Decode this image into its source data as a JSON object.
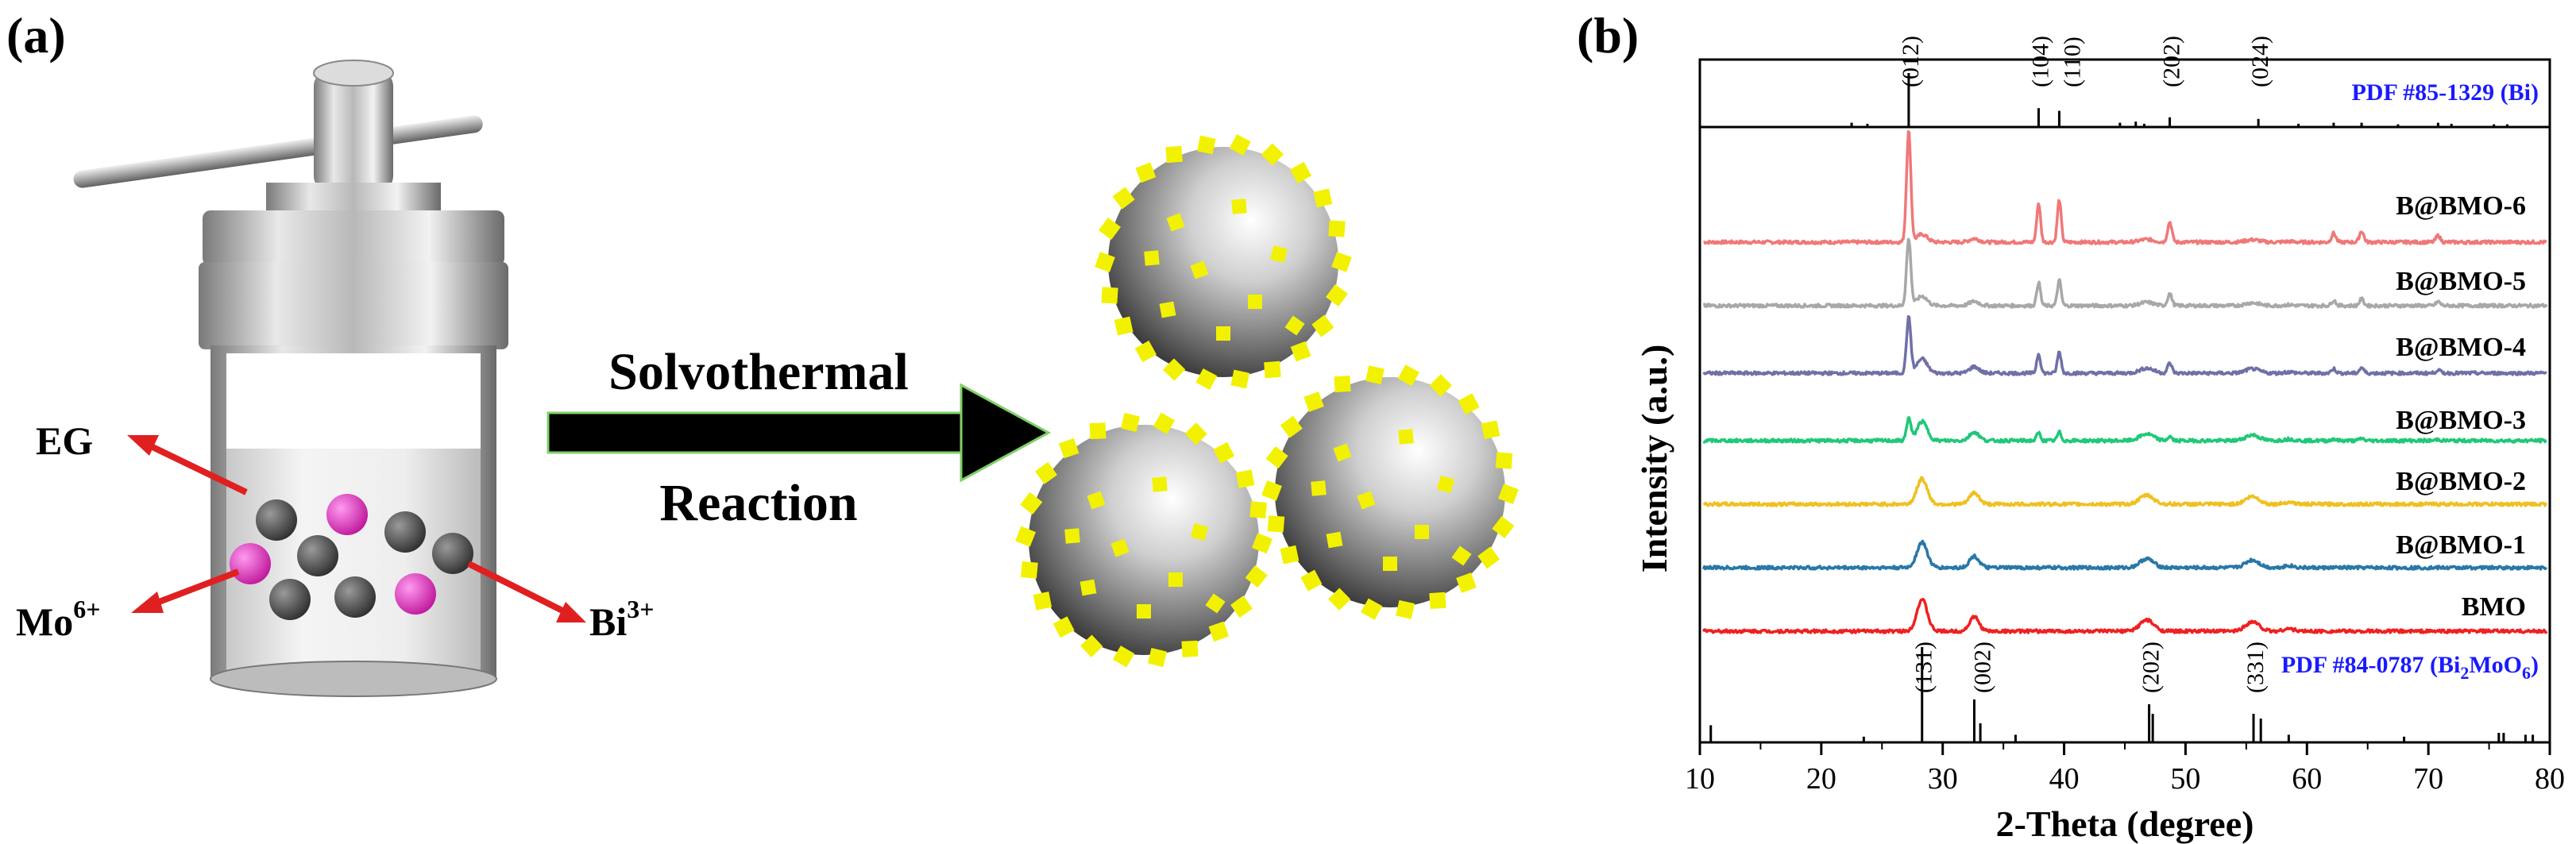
{
  "panel_a": {
    "label": "(a)",
    "arrow_text_line1": "Solvothermal",
    "arrow_text_line2": "Reaction",
    "reagents": {
      "eg": "EG",
      "mo_base": "Mo",
      "mo_sup": "6+",
      "bi_base": "Bi",
      "bi_sup": "3+"
    },
    "colors": {
      "particle_dark": "#555555",
      "particle_magenta": "#e040c0",
      "decoration_yellow": "#f2f200",
      "pointer_red": "#e02020"
    }
  },
  "panel_b": {
    "label": "(b)",
    "chart_data": {
      "type": "line",
      "xlabel": "2-Theta (degree)",
      "ylabel": "Intensity (a.u.)",
      "xlim": [
        10,
        80
      ],
      "x_ticks": [
        "10",
        "20",
        "30",
        "40",
        "50",
        "60",
        "70",
        "80"
      ],
      "grid": false,
      "series": [
        {
          "name": "B@BMO-6",
          "color": "#f07878",
          "bi_strength": 1.0,
          "bmo_strength": 0.25
        },
        {
          "name": "B@BMO-5",
          "color": "#a8a8a8",
          "bi_strength": 0.6,
          "bmo_strength": 0.3
        },
        {
          "name": "B@BMO-4",
          "color": "#7070a8",
          "bi_strength": 0.5,
          "bmo_strength": 0.45
        },
        {
          "name": "B@BMO-3",
          "color": "#20c878",
          "bi_strength": 0.2,
          "bmo_strength": 0.6
        },
        {
          "name": "B@BMO-2",
          "color": "#f0c020",
          "bi_strength": 0.0,
          "bmo_strength": 0.8
        },
        {
          "name": "B@BMO-1",
          "color": "#2878a8",
          "bi_strength": 0.0,
          "bmo_strength": 0.8
        },
        {
          "name": "BMO",
          "color": "#f02020",
          "bi_strength": 0.0,
          "bmo_strength": 1.0
        }
      ],
      "reference_top": {
        "label": "PDF #85-1329 (Bi)",
        "label_color": "#1a1aff",
        "sticks": [
          {
            "x": 22.5,
            "h": 0.08
          },
          {
            "x": 23.8,
            "h": 0.06
          },
          {
            "x": 27.2,
            "h": 1.0
          },
          {
            "x": 37.9,
            "h": 0.35
          },
          {
            "x": 39.6,
            "h": 0.3
          },
          {
            "x": 44.6,
            "h": 0.08
          },
          {
            "x": 45.9,
            "h": 0.1
          },
          {
            "x": 46.6,
            "h": 0.06
          },
          {
            "x": 48.7,
            "h": 0.18
          },
          {
            "x": 56.0,
            "h": 0.15
          },
          {
            "x": 59.3,
            "h": 0.06
          },
          {
            "x": 62.2,
            "h": 0.08
          },
          {
            "x": 64.5,
            "h": 0.08
          },
          {
            "x": 67.5,
            "h": 0.05
          },
          {
            "x": 70.8,
            "h": 0.08
          },
          {
            "x": 71.9,
            "h": 0.06
          },
          {
            "x": 75.4,
            "h": 0.05
          },
          {
            "x": 76.5,
            "h": 0.05
          }
        ],
        "hkl": [
          {
            "x": 27.2,
            "text": "(012)"
          },
          {
            "x": 37.9,
            "text": "(104)"
          },
          {
            "x": 39.6,
            "text": "(110)"
          },
          {
            "x": 48.7,
            "text": "(202)"
          },
          {
            "x": 56.0,
            "text": "(024)"
          }
        ]
      },
      "reference_bottom": {
        "label_base": "PDF #84-0787 (Bi",
        "label_sub1": "2",
        "label_mid": "MoO",
        "label_sub2": "6",
        "label_end": ")",
        "label_color": "#1a1aff",
        "sticks": [
          {
            "x": 10.9,
            "h": 0.18
          },
          {
            "x": 23.5,
            "h": 0.06
          },
          {
            "x": 28.3,
            "h": 1.0
          },
          {
            "x": 32.6,
            "h": 0.45
          },
          {
            "x": 33.1,
            "h": 0.2
          },
          {
            "x": 36.0,
            "h": 0.08
          },
          {
            "x": 47.0,
            "h": 0.4
          },
          {
            "x": 47.3,
            "h": 0.3
          },
          {
            "x": 55.6,
            "h": 0.3
          },
          {
            "x": 56.2,
            "h": 0.25
          },
          {
            "x": 58.5,
            "h": 0.08
          },
          {
            "x": 68.0,
            "h": 0.06
          },
          {
            "x": 75.8,
            "h": 0.1
          },
          {
            "x": 76.2,
            "h": 0.1
          },
          {
            "x": 78.0,
            "h": 0.08
          },
          {
            "x": 78.6,
            "h": 0.08
          }
        ],
        "hkl": [
          {
            "x": 28.3,
            "text": "(131)"
          },
          {
            "x": 32.6,
            "text": "(002)"
          },
          {
            "x": 47.0,
            "text": "(202)"
          },
          {
            "x": 55.6,
            "text": "(331)"
          }
        ]
      },
      "bi_peaks": [
        {
          "x": 27.2,
          "h": 1.0,
          "w": 0.25
        },
        {
          "x": 37.9,
          "h": 0.35,
          "w": 0.22
        },
        {
          "x": 39.6,
          "h": 0.38,
          "w": 0.22
        },
        {
          "x": 48.7,
          "h": 0.18,
          "w": 0.25
        },
        {
          "x": 62.2,
          "h": 0.08,
          "w": 0.25
        },
        {
          "x": 64.5,
          "h": 0.1,
          "w": 0.25
        },
        {
          "x": 70.8,
          "h": 0.06,
          "w": 0.25
        }
      ],
      "bmo_peaks": [
        {
          "x": 28.3,
          "h": 1.0,
          "w": 0.6
        },
        {
          "x": 32.6,
          "h": 0.45,
          "w": 0.55
        },
        {
          "x": 46.8,
          "h": 0.35,
          "w": 0.8
        },
        {
          "x": 55.5,
          "h": 0.3,
          "w": 0.8
        },
        {
          "x": 58.5,
          "h": 0.08,
          "w": 0.6
        }
      ]
    }
  }
}
